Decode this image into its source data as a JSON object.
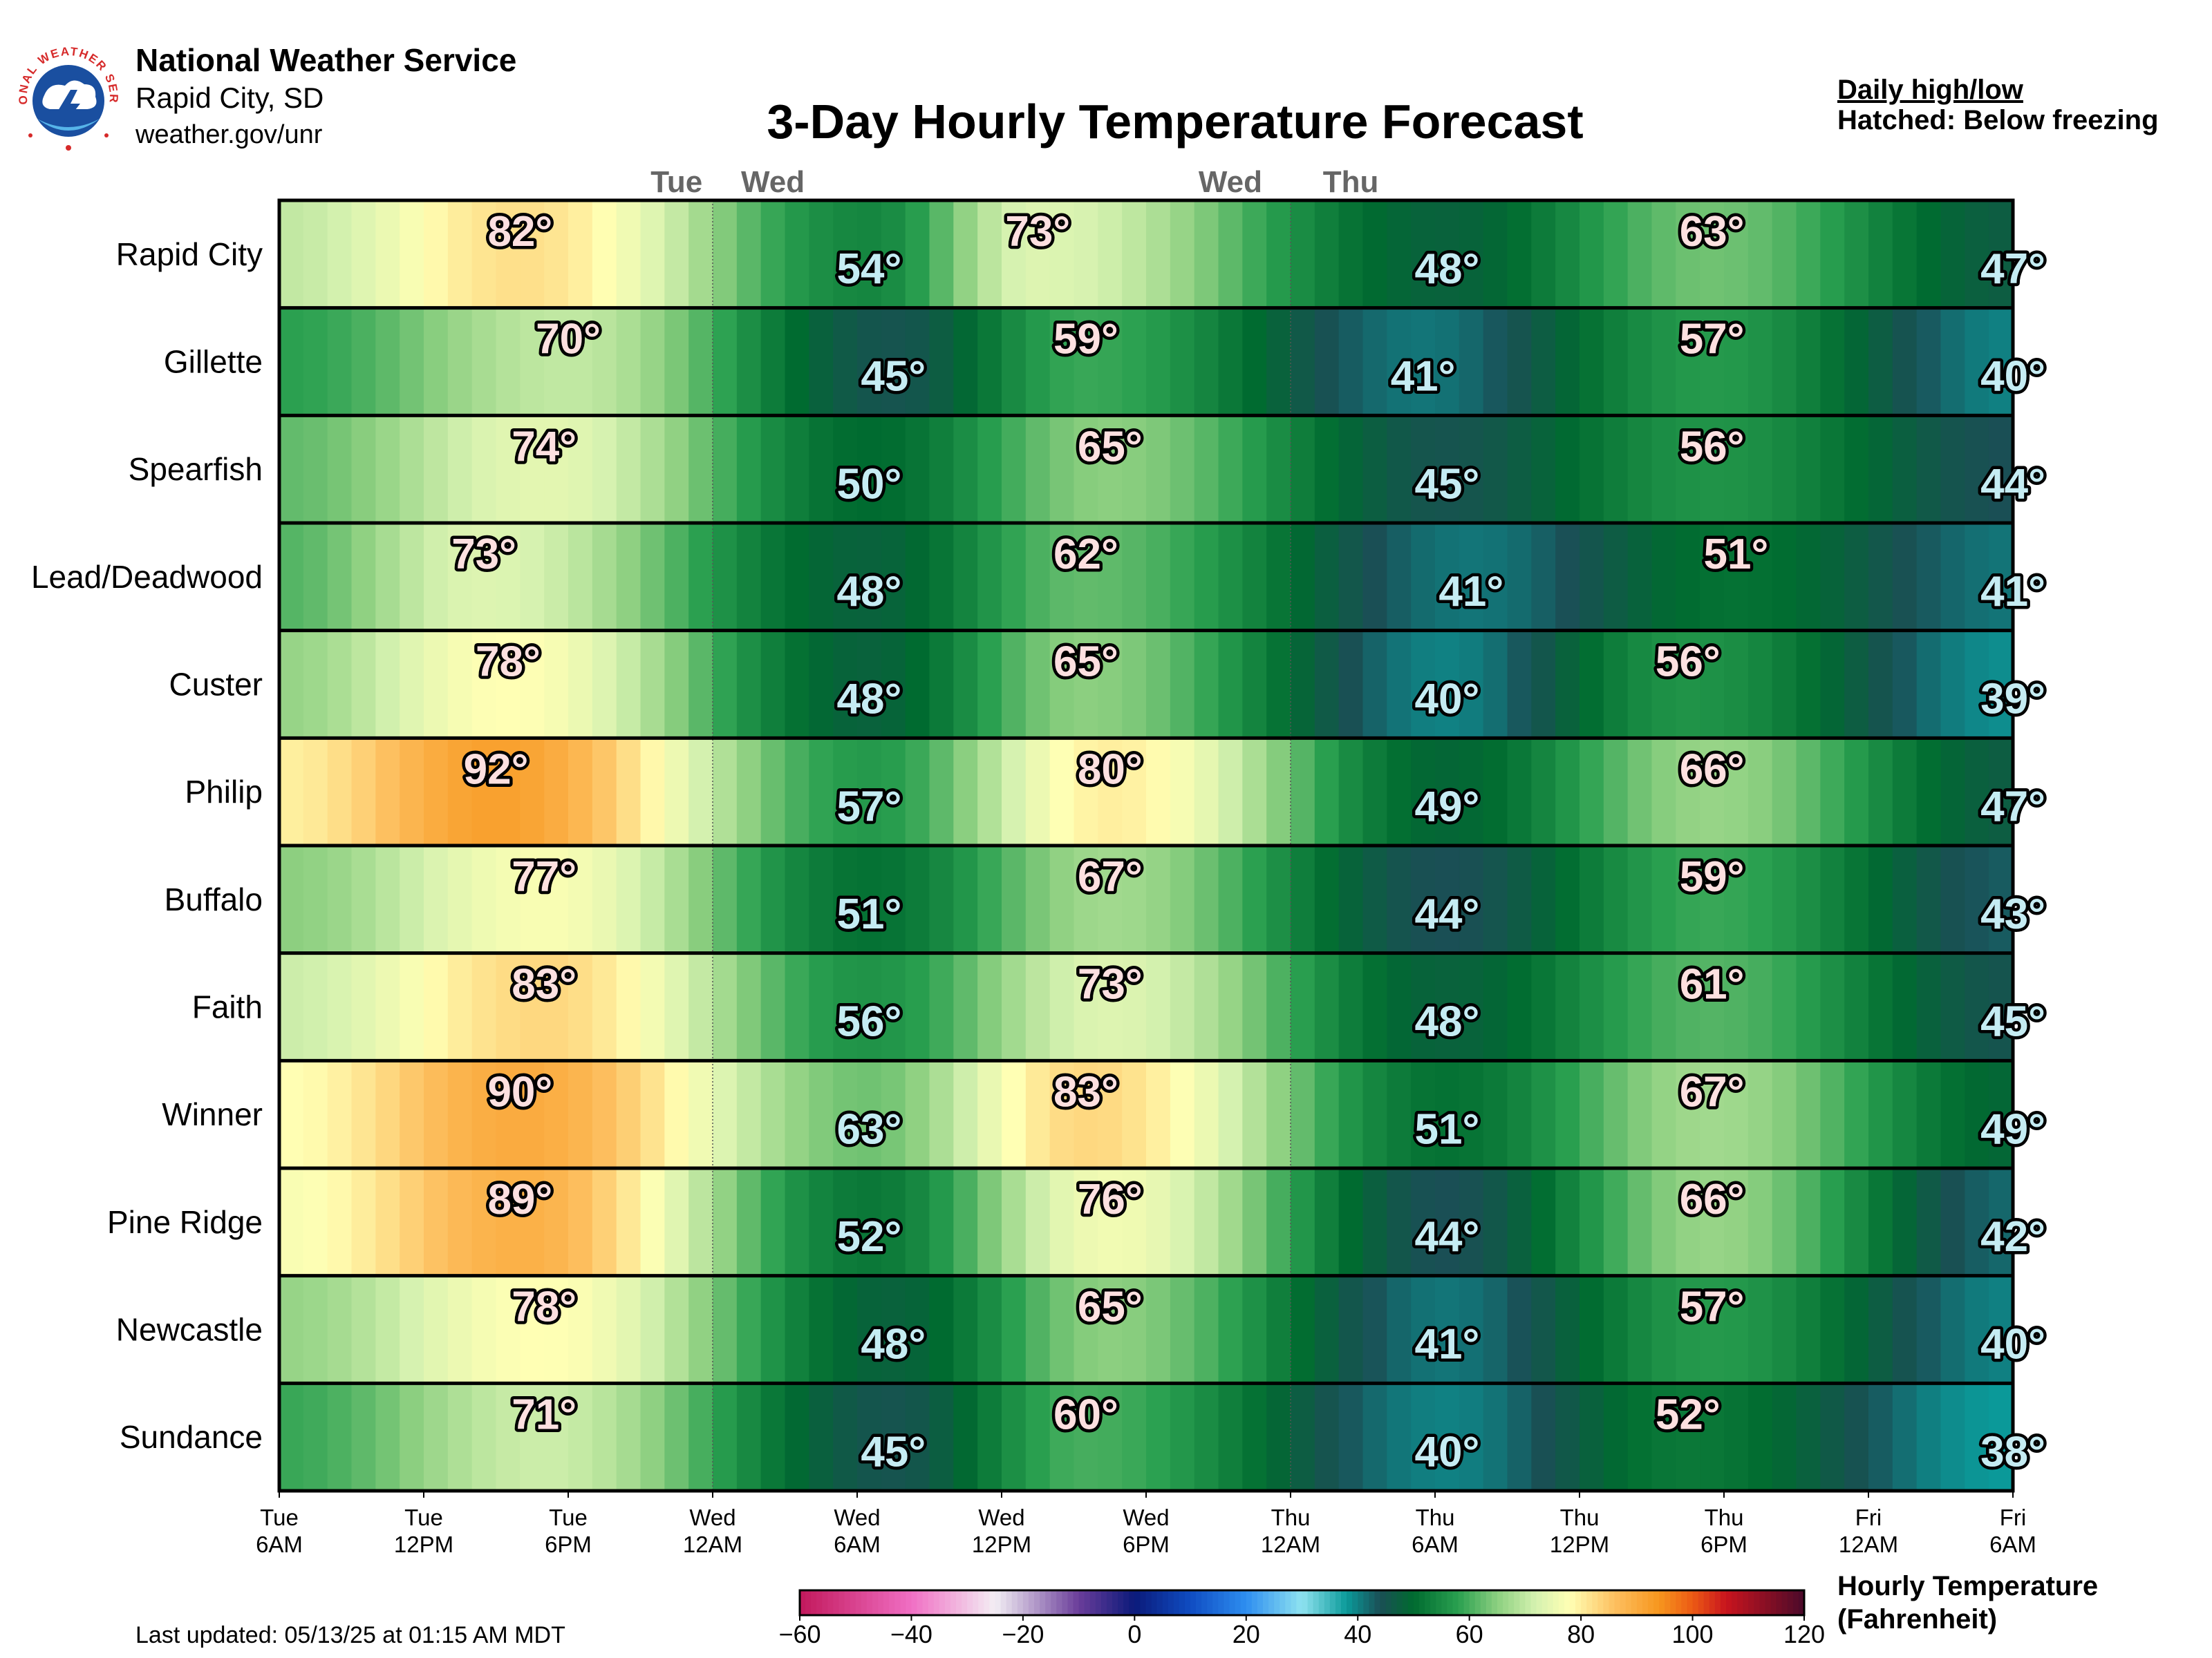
{
  "header": {
    "org": "National Weather Service",
    "office": "Rapid City, SD",
    "website": "weather.gov/unr",
    "logo_text": "NATIONAL WEATHER SERVICE"
  },
  "title": "3-Day Hourly Temperature Forecast",
  "legend_note": {
    "line1": "Daily high/low",
    "line2": "Hatched: Below freezing"
  },
  "footer": {
    "last_updated": "Last updated: 05/13/25 at 01:15 AM MDT"
  },
  "colorbar": {
    "title_line1": "Hourly Temperature",
    "title_line2": "(Fahrenheit)",
    "ticks": [
      "−60",
      "−40",
      "−20",
      "0",
      "20",
      "40",
      "60",
      "80",
      "100",
      "120"
    ],
    "range": [
      -60,
      120
    ]
  },
  "chart_data": {
    "type": "heatmap",
    "title": "3-Day Hourly Temperature Forecast",
    "units": "°F",
    "x_range_hours": [
      0,
      72
    ],
    "x_ticks": [
      {
        "day": "Tue",
        "time": "6AM"
      },
      {
        "day": "Tue",
        "time": "12PM"
      },
      {
        "day": "Tue",
        "time": "6PM"
      },
      {
        "day": "Wed",
        "time": "12AM"
      },
      {
        "day": "Wed",
        "time": "6AM"
      },
      {
        "day": "Wed",
        "time": "12PM"
      },
      {
        "day": "Wed",
        "time": "6PM"
      },
      {
        "day": "Thu",
        "time": "12AM"
      },
      {
        "day": "Thu",
        "time": "6AM"
      },
      {
        "day": "Thu",
        "time": "12PM"
      },
      {
        "day": "Thu",
        "time": "6PM"
      },
      {
        "day": "Fri",
        "time": "12AM"
      },
      {
        "day": "Fri",
        "time": "6AM"
      }
    ],
    "top_day_labels": [
      {
        "label": "Tue",
        "hour": 16.5
      },
      {
        "label": "Wed",
        "hour": 20.5
      },
      {
        "label": "Wed",
        "hour": 39.5
      },
      {
        "label": "Thu",
        "hour": 44.5
      }
    ],
    "midnight_hours": [
      18,
      42
    ],
    "rows": [
      {
        "name": "Rapid City",
        "extremes": [
          {
            "label": "82°",
            "value": 82,
            "hour": 10.0,
            "kind": "high"
          },
          {
            "label": "54°",
            "value": 54,
            "hour": 24.5,
            "kind": "low"
          },
          {
            "label": "73°",
            "value": 73,
            "hour": 31.5,
            "kind": "high"
          },
          {
            "label": "48°",
            "value": 48,
            "hour": 48.5,
            "kind": "low"
          },
          {
            "label": "63°",
            "value": 63,
            "hour": 59.5,
            "kind": "high"
          },
          {
            "label": "47°",
            "value": 47,
            "hour": 72.0,
            "kind": "low"
          }
        ]
      },
      {
        "name": "Gillette",
        "extremes": [
          {
            "label": "70°",
            "value": 70,
            "hour": 12.0,
            "kind": "high"
          },
          {
            "label": "45°",
            "value": 45,
            "hour": 25.5,
            "kind": "low"
          },
          {
            "label": "59°",
            "value": 59,
            "hour": 33.5,
            "kind": "high"
          },
          {
            "label": "41°",
            "value": 41,
            "hour": 47.5,
            "kind": "low"
          },
          {
            "label": "57°",
            "value": 57,
            "hour": 59.5,
            "kind": "high"
          },
          {
            "label": "40°",
            "value": 40,
            "hour": 72.0,
            "kind": "low"
          }
        ]
      },
      {
        "name": "Spearfish",
        "extremes": [
          {
            "label": "74°",
            "value": 74,
            "hour": 11.0,
            "kind": "high"
          },
          {
            "label": "50°",
            "value": 50,
            "hour": 24.5,
            "kind": "low"
          },
          {
            "label": "65°",
            "value": 65,
            "hour": 34.5,
            "kind": "high"
          },
          {
            "label": "45°",
            "value": 45,
            "hour": 48.5,
            "kind": "low"
          },
          {
            "label": "56°",
            "value": 56,
            "hour": 59.5,
            "kind": "high"
          },
          {
            "label": "44°",
            "value": 44,
            "hour": 72.0,
            "kind": "low"
          }
        ]
      },
      {
        "name": "Lead/Deadwood",
        "extremes": [
          {
            "label": "73°",
            "value": 73,
            "hour": 8.5,
            "kind": "high"
          },
          {
            "label": "48°",
            "value": 48,
            "hour": 24.5,
            "kind": "low"
          },
          {
            "label": "62°",
            "value": 62,
            "hour": 33.5,
            "kind": "high"
          },
          {
            "label": "41°",
            "value": 41,
            "hour": 49.5,
            "kind": "low"
          },
          {
            "label": "51°",
            "value": 51,
            "hour": 60.5,
            "kind": "high"
          },
          {
            "label": "41°",
            "value": 41,
            "hour": 72.0,
            "kind": "low"
          }
        ]
      },
      {
        "name": "Custer",
        "extremes": [
          {
            "label": "78°",
            "value": 78,
            "hour": 9.5,
            "kind": "high"
          },
          {
            "label": "48°",
            "value": 48,
            "hour": 24.5,
            "kind": "low"
          },
          {
            "label": "65°",
            "value": 65,
            "hour": 33.5,
            "kind": "high"
          },
          {
            "label": "40°",
            "value": 40,
            "hour": 48.5,
            "kind": "low"
          },
          {
            "label": "56°",
            "value": 56,
            "hour": 58.5,
            "kind": "high"
          },
          {
            "label": "39°",
            "value": 39,
            "hour": 72.0,
            "kind": "low"
          }
        ]
      },
      {
        "name": "Philip",
        "extremes": [
          {
            "label": "92°",
            "value": 92,
            "hour": 9.0,
            "kind": "high"
          },
          {
            "label": "57°",
            "value": 57,
            "hour": 24.5,
            "kind": "low"
          },
          {
            "label": "80°",
            "value": 80,
            "hour": 34.5,
            "kind": "high"
          },
          {
            "label": "49°",
            "value": 49,
            "hour": 48.5,
            "kind": "low"
          },
          {
            "label": "66°",
            "value": 66,
            "hour": 59.5,
            "kind": "high"
          },
          {
            "label": "47°",
            "value": 47,
            "hour": 72.0,
            "kind": "low"
          }
        ]
      },
      {
        "name": "Buffalo",
        "extremes": [
          {
            "label": "77°",
            "value": 77,
            "hour": 11.0,
            "kind": "high"
          },
          {
            "label": "51°",
            "value": 51,
            "hour": 24.5,
            "kind": "low"
          },
          {
            "label": "67°",
            "value": 67,
            "hour": 34.5,
            "kind": "high"
          },
          {
            "label": "44°",
            "value": 44,
            "hour": 48.5,
            "kind": "low"
          },
          {
            "label": "59°",
            "value": 59,
            "hour": 59.5,
            "kind": "high"
          },
          {
            "label": "43°",
            "value": 43,
            "hour": 72.0,
            "kind": "low"
          }
        ]
      },
      {
        "name": "Faith",
        "extremes": [
          {
            "label": "83°",
            "value": 83,
            "hour": 11.0,
            "kind": "high"
          },
          {
            "label": "56°",
            "value": 56,
            "hour": 24.5,
            "kind": "low"
          },
          {
            "label": "73°",
            "value": 73,
            "hour": 34.5,
            "kind": "high"
          },
          {
            "label": "48°",
            "value": 48,
            "hour": 48.5,
            "kind": "low"
          },
          {
            "label": "61°",
            "value": 61,
            "hour": 59.5,
            "kind": "high"
          },
          {
            "label": "45°",
            "value": 45,
            "hour": 72.0,
            "kind": "low"
          }
        ]
      },
      {
        "name": "Winner",
        "extremes": [
          {
            "label": "90°",
            "value": 90,
            "hour": 10.0,
            "kind": "high"
          },
          {
            "label": "63°",
            "value": 63,
            "hour": 24.5,
            "kind": "low"
          },
          {
            "label": "83°",
            "value": 83,
            "hour": 33.5,
            "kind": "high"
          },
          {
            "label": "51°",
            "value": 51,
            "hour": 48.5,
            "kind": "low"
          },
          {
            "label": "67°",
            "value": 67,
            "hour": 59.5,
            "kind": "high"
          },
          {
            "label": "49°",
            "value": 49,
            "hour": 72.0,
            "kind": "low"
          }
        ]
      },
      {
        "name": "Pine Ridge",
        "extremes": [
          {
            "label": "89°",
            "value": 89,
            "hour": 10.0,
            "kind": "high"
          },
          {
            "label": "52°",
            "value": 52,
            "hour": 24.5,
            "kind": "low"
          },
          {
            "label": "76°",
            "value": 76,
            "hour": 34.5,
            "kind": "high"
          },
          {
            "label": "44°",
            "value": 44,
            "hour": 48.5,
            "kind": "low"
          },
          {
            "label": "66°",
            "value": 66,
            "hour": 59.5,
            "kind": "high"
          },
          {
            "label": "42°",
            "value": 42,
            "hour": 72.0,
            "kind": "low"
          }
        ]
      },
      {
        "name": "Newcastle",
        "extremes": [
          {
            "label": "78°",
            "value": 78,
            "hour": 11.0,
            "kind": "high"
          },
          {
            "label": "48°",
            "value": 48,
            "hour": 25.5,
            "kind": "low"
          },
          {
            "label": "65°",
            "value": 65,
            "hour": 34.5,
            "kind": "high"
          },
          {
            "label": "41°",
            "value": 41,
            "hour": 48.5,
            "kind": "low"
          },
          {
            "label": "57°",
            "value": 57,
            "hour": 59.5,
            "kind": "high"
          },
          {
            "label": "40°",
            "value": 40,
            "hour": 72.0,
            "kind": "low"
          }
        ]
      },
      {
        "name": "Sundance",
        "extremes": [
          {
            "label": "71°",
            "value": 71,
            "hour": 11.0,
            "kind": "high"
          },
          {
            "label": "45°",
            "value": 45,
            "hour": 25.5,
            "kind": "low"
          },
          {
            "label": "60°",
            "value": 60,
            "hour": 33.5,
            "kind": "high"
          },
          {
            "label": "40°",
            "value": 40,
            "hour": 48.5,
            "kind": "low"
          },
          {
            "label": "52°",
            "value": 52,
            "hour": 58.5,
            "kind": "high"
          },
          {
            "label": "38°",
            "value": 38,
            "hour": 72.0,
            "kind": "low"
          }
        ]
      }
    ]
  }
}
